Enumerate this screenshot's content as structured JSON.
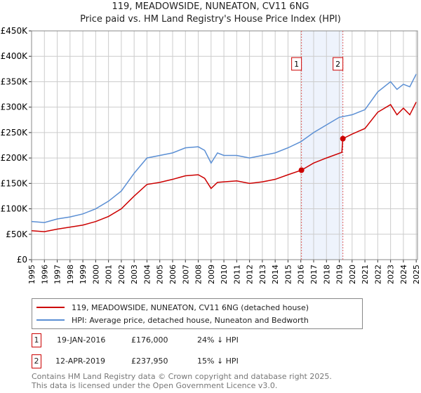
{
  "chart_data": {
    "type": "line",
    "title": "119, MEADOWSIDE, NUNEATON, CV11 6NG",
    "subtitle": "Price paid vs. HM Land Registry's House Price Index (HPI)",
    "xlim": [
      1995,
      2025.1
    ],
    "ylim": [
      0,
      450000
    ],
    "yticks": [
      0,
      50000,
      100000,
      150000,
      200000,
      250000,
      300000,
      350000,
      400000,
      450000
    ],
    "ytick_labels": [
      "£0",
      "£50K",
      "£100K",
      "£150K",
      "£200K",
      "£250K",
      "£300K",
      "£350K",
      "£400K",
      "£450K"
    ],
    "xticks": [
      "1995",
      "1996",
      "1997",
      "1998",
      "1999",
      "2000",
      "2001",
      "2002",
      "2003",
      "2004",
      "2005",
      "2006",
      "2007",
      "2008",
      "2009",
      "2010",
      "2011",
      "2012",
      "2013",
      "2014",
      "2015",
      "2016",
      "2017",
      "2018",
      "2019",
      "2020",
      "2021",
      "2022",
      "2023",
      "2024",
      "2025"
    ],
    "grid": true,
    "series": [
      {
        "name": "119, MEADOWSIDE, NUNEATON, CV11 6NG (detached house)",
        "color": "#cc0000",
        "x": [
          1995,
          1996,
          1997,
          1998,
          1999,
          2000,
          2001,
          2002,
          2003,
          2004,
          2005,
          2006,
          2007,
          2008,
          2008.5,
          2009,
          2009.5,
          2010,
          2011,
          2012,
          2013,
          2014,
          2015,
          2016.05,
          2017,
          2018,
          2019.2,
          2019.28,
          2020,
          2021,
          2022,
          2023,
          2023.5,
          2024,
          2024.5,
          2025
        ],
        "y": [
          57000,
          55000,
          60000,
          64000,
          68000,
          75000,
          85000,
          100000,
          125000,
          148000,
          152000,
          158000,
          165000,
          167000,
          160000,
          140000,
          152000,
          153000,
          155000,
          150000,
          153000,
          158000,
          167000,
          176000,
          190000,
          200000,
          211000,
          237950,
          247000,
          258000,
          290000,
          305000,
          285000,
          298000,
          285000,
          310000
        ]
      },
      {
        "name": "HPI: Average price, detached house, Nuneaton and Bedworth",
        "color": "#5b8fd4",
        "x": [
          1995,
          1996,
          1997,
          1998,
          1999,
          2000,
          2001,
          2002,
          2003,
          2004,
          2005,
          2006,
          2007,
          2008,
          2008.5,
          2009,
          2009.5,
          2010,
          2011,
          2012,
          2013,
          2014,
          2015,
          2016,
          2017,
          2018,
          2019,
          2020,
          2021,
          2022,
          2023,
          2023.5,
          2024,
          2024.5,
          2025
        ],
        "y": [
          75000,
          73000,
          80000,
          84000,
          90000,
          100000,
          115000,
          135000,
          170000,
          200000,
          205000,
          210000,
          220000,
          222000,
          215000,
          190000,
          210000,
          205000,
          205000,
          200000,
          205000,
          210000,
          220000,
          232000,
          250000,
          265000,
          280000,
          285000,
          295000,
          330000,
          350000,
          335000,
          345000,
          340000,
          365000
        ]
      }
    ],
    "sales": [
      {
        "label": "1",
        "x": 2016.05,
        "y": 176000
      },
      {
        "label": "2",
        "x": 2019.28,
        "y": 237950
      }
    ],
    "shade": [
      2016.05,
      2019.28
    ]
  },
  "legend": {
    "red": "119, MEADOWSIDE, NUNEATON, CV11 6NG (detached house)",
    "blue": "HPI: Average price, detached house, Nuneaton and Bedworth"
  },
  "table": [
    {
      "num": "1",
      "date": "19-JAN-2016",
      "price": "£176,000",
      "hpi": "24% ↓ HPI"
    },
    {
      "num": "2",
      "date": "12-APR-2019",
      "price": "£237,950",
      "hpi": "15% ↓ HPI"
    }
  ],
  "footer": {
    "line1": "Contains HM Land Registry data © Crown copyright and database right 2025.",
    "line2": "This data is licensed under the Open Government Licence v3.0."
  }
}
